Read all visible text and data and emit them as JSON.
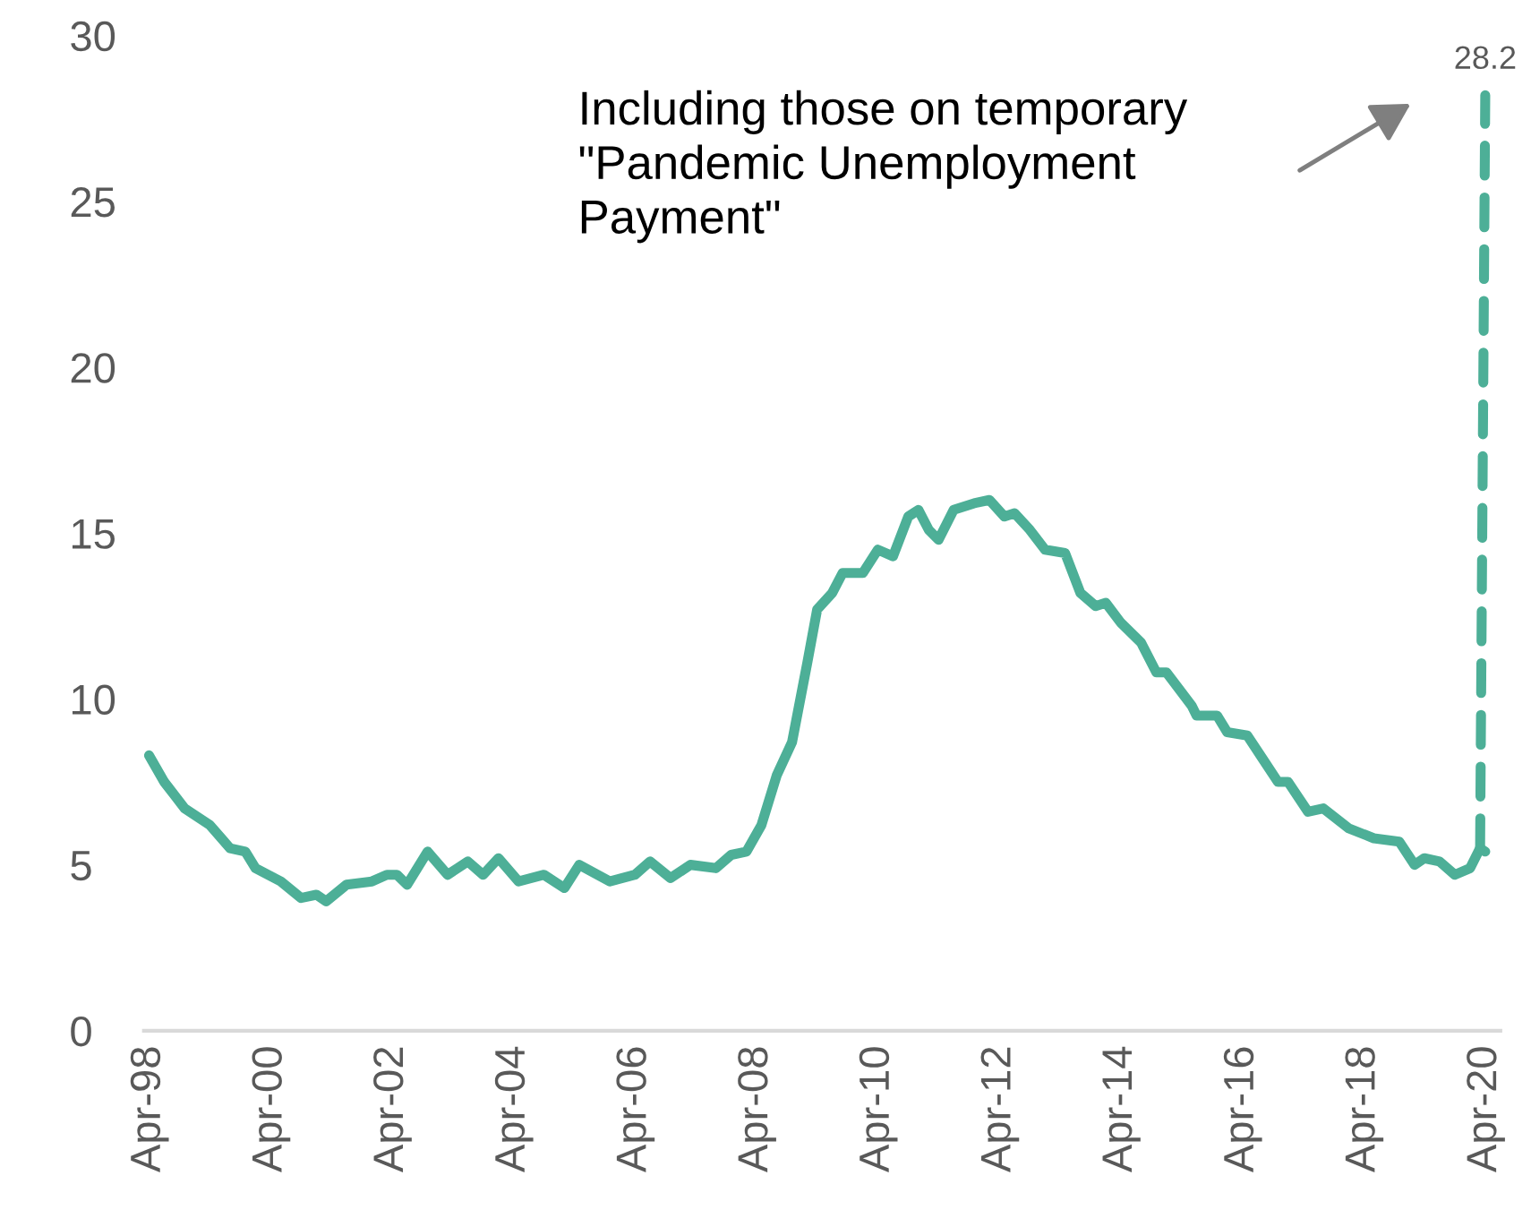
{
  "chart_data": {
    "type": "line",
    "x": [
      "1998-04",
      "1998-07",
      "1998-09",
      "1998-11",
      "1999-04",
      "1999-08",
      "1999-11",
      "2000-01",
      "2000-06",
      "2000-10",
      "2001-01",
      "2001-03",
      "2001-07",
      "2001-12",
      "2002-03",
      "2002-05",
      "2002-07",
      "2002-11",
      "2003-03",
      "2003-07",
      "2003-10",
      "2004-01",
      "2004-05",
      "2004-10",
      "2005-02",
      "2005-05",
      "2005-11",
      "2006-04",
      "2006-07",
      "2006-11",
      "2007-03",
      "2007-08",
      "2007-11",
      "2008-02",
      "2008-05",
      "2008-08",
      "2008-11",
      "2009-02",
      "2009-04",
      "2009-07",
      "2009-09",
      "2010-01",
      "2010-04",
      "2010-07",
      "2010-10",
      "2010-12",
      "2011-02",
      "2011-04",
      "2011-07",
      "2011-11",
      "2012-02",
      "2012-05",
      "2012-07",
      "2012-10",
      "2013-01",
      "2013-05",
      "2013-08",
      "2013-11",
      "2014-01",
      "2014-04",
      "2014-08",
      "2014-11",
      "2015-01",
      "2015-06",
      "2015-07",
      "2015-11",
      "2016-01",
      "2016-05",
      "2016-08",
      "2016-11",
      "2017-01",
      "2017-05",
      "2017-08",
      "2018-01",
      "2018-06",
      "2018-11",
      "2019-02",
      "2019-04",
      "2019-07",
      "2019-10",
      "2020-01",
      "2020-03",
      "2020-04"
    ],
    "series": [
      {
        "color": "#4daf97",
        "line_style": "solid",
        "values": [
          8.3,
          7.5,
          7.1,
          6.7,
          6.2,
          5.5,
          5.4,
          4.9,
          4.5,
          4.0,
          4.1,
          3.9,
          4.4,
          4.5,
          4.7,
          4.7,
          4.4,
          5.4,
          4.7,
          5.1,
          4.7,
          5.2,
          4.5,
          4.7,
          4.3,
          5.0,
          4.5,
          4.7,
          5.1,
          4.6,
          5.0,
          4.9,
          5.3,
          5.4,
          6.2,
          7.7,
          8.7,
          11.1,
          12.7,
          13.2,
          13.8,
          13.8,
          14.5,
          14.3,
          15.5,
          15.7,
          15.1,
          14.8,
          15.7,
          15.9,
          16.0,
          15.5,
          15.6,
          15.1,
          14.5,
          14.4,
          13.2,
          12.8,
          12.9,
          12.3,
          11.7,
          10.8,
          10.8,
          9.8,
          9.5,
          9.5,
          9.0,
          8.9,
          8.2,
          7.5,
          7.5,
          6.6,
          6.7,
          6.1,
          5.8,
          5.7,
          5.0,
          5.2,
          5.1,
          4.7,
          4.9,
          5.5,
          5.4
        ]
      },
      {
        "color": "#4daf97",
        "line_style": "dashed",
        "x": [
          "2020-03",
          "2020-04"
        ],
        "values": [
          5.5,
          28.2
        ],
        "value_labels": [
          null,
          "28.2"
        ]
      }
    ],
    "xlim": [
      "1998-03",
      "2020-07"
    ],
    "xticks": [
      {
        "value": "1998-04",
        "label": "Apr-98"
      },
      {
        "value": "2000-04",
        "label": "Apr-00"
      },
      {
        "value": "2002-04",
        "label": "Apr-02"
      },
      {
        "value": "2004-04",
        "label": "Apr-04"
      },
      {
        "value": "2006-04",
        "label": "Apr-06"
      },
      {
        "value": "2008-04",
        "label": "Apr-08"
      },
      {
        "value": "2010-04",
        "label": "Apr-10"
      },
      {
        "value": "2012-04",
        "label": "Apr-12"
      },
      {
        "value": "2014-04",
        "label": "Apr-14"
      },
      {
        "value": "2016-04",
        "label": "Apr-16"
      },
      {
        "value": "2018-04",
        "label": "Apr-18"
      },
      {
        "value": "2020-04",
        "label": "Apr-20"
      }
    ],
    "ylim": [
      0,
      30
    ],
    "yticks": [
      0,
      5,
      10,
      15,
      20,
      25,
      30
    ],
    "grid": false,
    "legend": false,
    "marker": "none",
    "annotations": [
      "Including those on temporary\n\"Pandemic Unemployment\nPayment\""
    ]
  }
}
